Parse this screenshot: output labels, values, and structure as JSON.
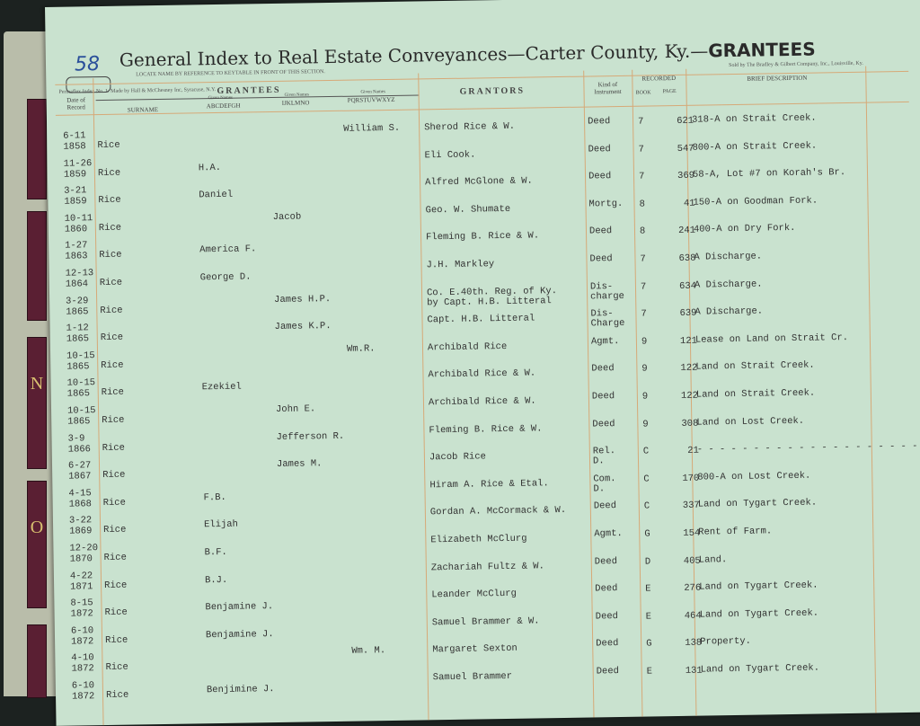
{
  "page_number": "58",
  "title": "General Index to Real Estate Conveyances—Carter County, Ky.—",
  "title_bold": "GRANTEES",
  "locate_note": "LOCATE NAME BY REFERENCE TO KEYTABLE IN FRONT OF THIS SECTION.",
  "maker_note": "Permaflex Index No. 1. Made by Hall & McChesney Inc, Syracuse, N.Y.",
  "seller_note": "Sold by The Bradley & Gilbert Company, Inc., Louisville, Ky.",
  "tabs": [
    "N",
    "O"
  ],
  "headers": {
    "date": "Date of Record",
    "grantees": "GRANTEES",
    "surname": "SURNAME",
    "given_label": "Given Names",
    "given_ah": "ABCDEFGH",
    "given_io": "IJKLMNO",
    "given_pz": "PQRSTUVWXYZ",
    "grantors": "GRANTORS",
    "kind": "Kind of Instrument",
    "recorded": "RECORDED",
    "book": "BOOK",
    "page": "PAGE",
    "description": "BRIEF DESCRIPTION"
  },
  "rows": [
    {
      "date": "6-11\n1858",
      "surname": "Rice",
      "given": "William S.",
      "col": "pz",
      "grantor": "Sherod Rice & W.",
      "kind": "Deed",
      "book": "7",
      "page": "621",
      "desc": "318-A on Strait Creek."
    },
    {
      "date": "11-26\n1859",
      "surname": "Rice",
      "given": "H.A.",
      "col": "ah",
      "grantor": "Eli Cook.",
      "kind": "Deed",
      "book": "7",
      "page": "547",
      "desc": "800-A on Strait Creek."
    },
    {
      "date": "3-21\n1859",
      "surname": "Rice",
      "given": "Daniel",
      "col": "ah",
      "grantor": "Alfred McGlone & W.",
      "kind": "Deed",
      "book": "7",
      "page": "369",
      "desc": "58-A, Lot #7 on Korah's Br."
    },
    {
      "date": "10-11\n1860",
      "surname": "Rice",
      "given": "Jacob",
      "col": "io",
      "grantor": "Geo. W. Shumate",
      "kind": "Mortg.",
      "book": "8",
      "page": "41",
      "desc": "150-A on Goodman Fork."
    },
    {
      "date": "1-27\n1863",
      "surname": "Rice",
      "given": "America F.",
      "col": "ah",
      "grantor": "Fleming B. Rice & W.",
      "kind": "Deed",
      "book": "8",
      "page": "241",
      "desc": "400-A on Dry Fork."
    },
    {
      "date": "12-13\n1864",
      "surname": "Rice",
      "given": "George D.",
      "col": "ah",
      "grantor": "J.H. Markley",
      "kind": "Deed",
      "book": "7",
      "page": "638",
      "desc": "A Discharge."
    },
    {
      "date": "3-29\n1865",
      "surname": "Rice",
      "given": "James H.P.",
      "col": "io",
      "grantor": "Co. E.40th. Reg. of Ky.\nby Capt. H.B. Litteral",
      "kind": "Dis-\ncharge",
      "book": "7",
      "page": "634",
      "desc": "A Discharge."
    },
    {
      "date": "1-12\n1865",
      "surname": "Rice",
      "given": "James K.P.",
      "col": "io",
      "grantor": "Capt. H.B. Litteral",
      "kind": "Dis-\nCharge",
      "book": "7",
      "page": "639",
      "desc": "A Discharge."
    },
    {
      "date": "10-15\n1865",
      "surname": "Rice",
      "given": "Wm.R.",
      "col": "pz",
      "grantor": "Archibald Rice",
      "kind": "Agmt.",
      "book": "9",
      "page": "121",
      "desc": "Lease on Land on Strait Cr."
    },
    {
      "date": "10-15\n1865",
      "surname": "Rice",
      "given": "Ezekiel",
      "col": "ah",
      "grantor": "Archibald Rice & W.",
      "kind": "Deed",
      "book": "9",
      "page": "122",
      "desc": "Land on Strait Creek."
    },
    {
      "date": "10-15\n1865",
      "surname": "Rice",
      "given": "John E.",
      "col": "io",
      "grantor": "Archibald Rice & W.",
      "kind": "Deed",
      "book": "9",
      "page": "122",
      "desc": "Land on Strait Creek."
    },
    {
      "date": "3-9\n1866",
      "surname": "Rice",
      "given": "Jefferson R.",
      "col": "io",
      "grantor": "Fleming B. Rice & W.",
      "kind": "Deed",
      "book": "9",
      "page": "308",
      "desc": "Land on Lost Creek."
    },
    {
      "date": "6-27\n1867",
      "surname": "Rice",
      "given": "James M.",
      "col": "io",
      "grantor": "Jacob Rice",
      "kind": "Rel.\nD.",
      "book": "C",
      "page": "21",
      "desc": "- - - - - - - - - - - - - - - - - - - - - - - -"
    },
    {
      "date": "4-15\n1868",
      "surname": "Rice",
      "given": "F.B.",
      "col": "ah",
      "grantor": "Hiram A. Rice & Etal.",
      "kind": "Com.\nD.",
      "book": "C",
      "page": "170",
      "desc": "800-A on Lost Creek."
    },
    {
      "date": "3-22\n1869",
      "surname": "Rice",
      "given": "Elijah",
      "col": "ah",
      "grantor": "Gordan A. McCormack & W.",
      "kind": "Deed",
      "book": "C",
      "page": "337",
      "desc": "Land on Tygart Creek."
    },
    {
      "date": "12-20\n1870",
      "surname": "Rice",
      "given": "B.F.",
      "col": "ah",
      "grantor": "Elizabeth McClurg",
      "kind": "Agmt.",
      "book": "G",
      "page": "154",
      "desc": "Rent of Farm."
    },
    {
      "date": "4-22\n1871",
      "surname": "Rice",
      "given": "B.J.",
      "col": "ah",
      "grantor": "Zachariah Fultz & W.",
      "kind": "Deed",
      "book": "D",
      "page": "405",
      "desc": "Land."
    },
    {
      "date": "8-15\n1872",
      "surname": "Rice",
      "given": "Benjamine J.",
      "col": "ah",
      "grantor": "Leander McClurg",
      "kind": "Deed",
      "book": "E",
      "page": "276",
      "desc": "Land on Tygart Creek."
    },
    {
      "date": "6-10\n1872",
      "surname": "Rice",
      "given": "Benjamine J.",
      "col": "ah",
      "grantor": "Samuel Brammer & W.",
      "kind": "Deed",
      "book": "E",
      "page": "464",
      "desc": "Land on Tygart Creek."
    },
    {
      "date": "4-10\n1872",
      "surname": "Rice",
      "given": "Wm. M.",
      "col": "pz",
      "grantor": "Margaret Sexton",
      "kind": "Deed",
      "book": "G",
      "page": "138",
      "desc": "Property."
    },
    {
      "date": "6-10\n1872",
      "surname": "Rice",
      "given": "Benjimine J.",
      "col": "ah",
      "grantor": "Samuel Brammer",
      "kind": "Deed",
      "book": "E",
      "page": "131",
      "desc": "Land on Tygart Creek."
    }
  ]
}
